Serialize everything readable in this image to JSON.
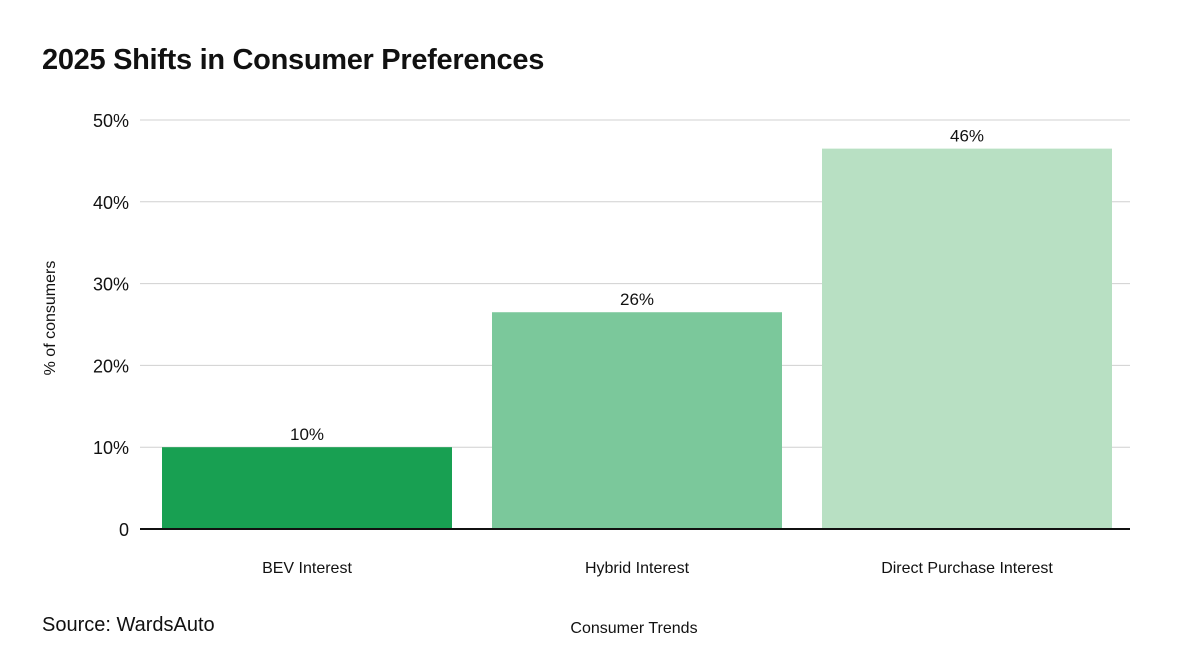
{
  "title": "2025 Shifts in Consumer Preferences",
  "source": "Source: WardsAuto",
  "chart_data": {
    "type": "bar",
    "title": "2025 Shifts in Consumer Preferences",
    "categories": [
      "BEV Interest",
      "Hybrid Interest",
      "Direct Purchase Interest"
    ],
    "values": [
      10,
      26.5,
      46.5
    ],
    "data_labels": [
      "10%",
      "26%",
      "46%"
    ],
    "colors": [
      "#18a052",
      "#7bc89b",
      "#b8e0c3"
    ],
    "ylabel": "% of consumers",
    "xlabel": "Consumer Trends",
    "ylim": [
      0,
      50
    ],
    "yticks": [
      0,
      10,
      20,
      30,
      40,
      50
    ],
    "ytick_labels": [
      "0",
      "10%",
      "20%",
      "30%",
      "40%",
      "50%"
    ],
    "grid": true,
    "legend": "none"
  }
}
